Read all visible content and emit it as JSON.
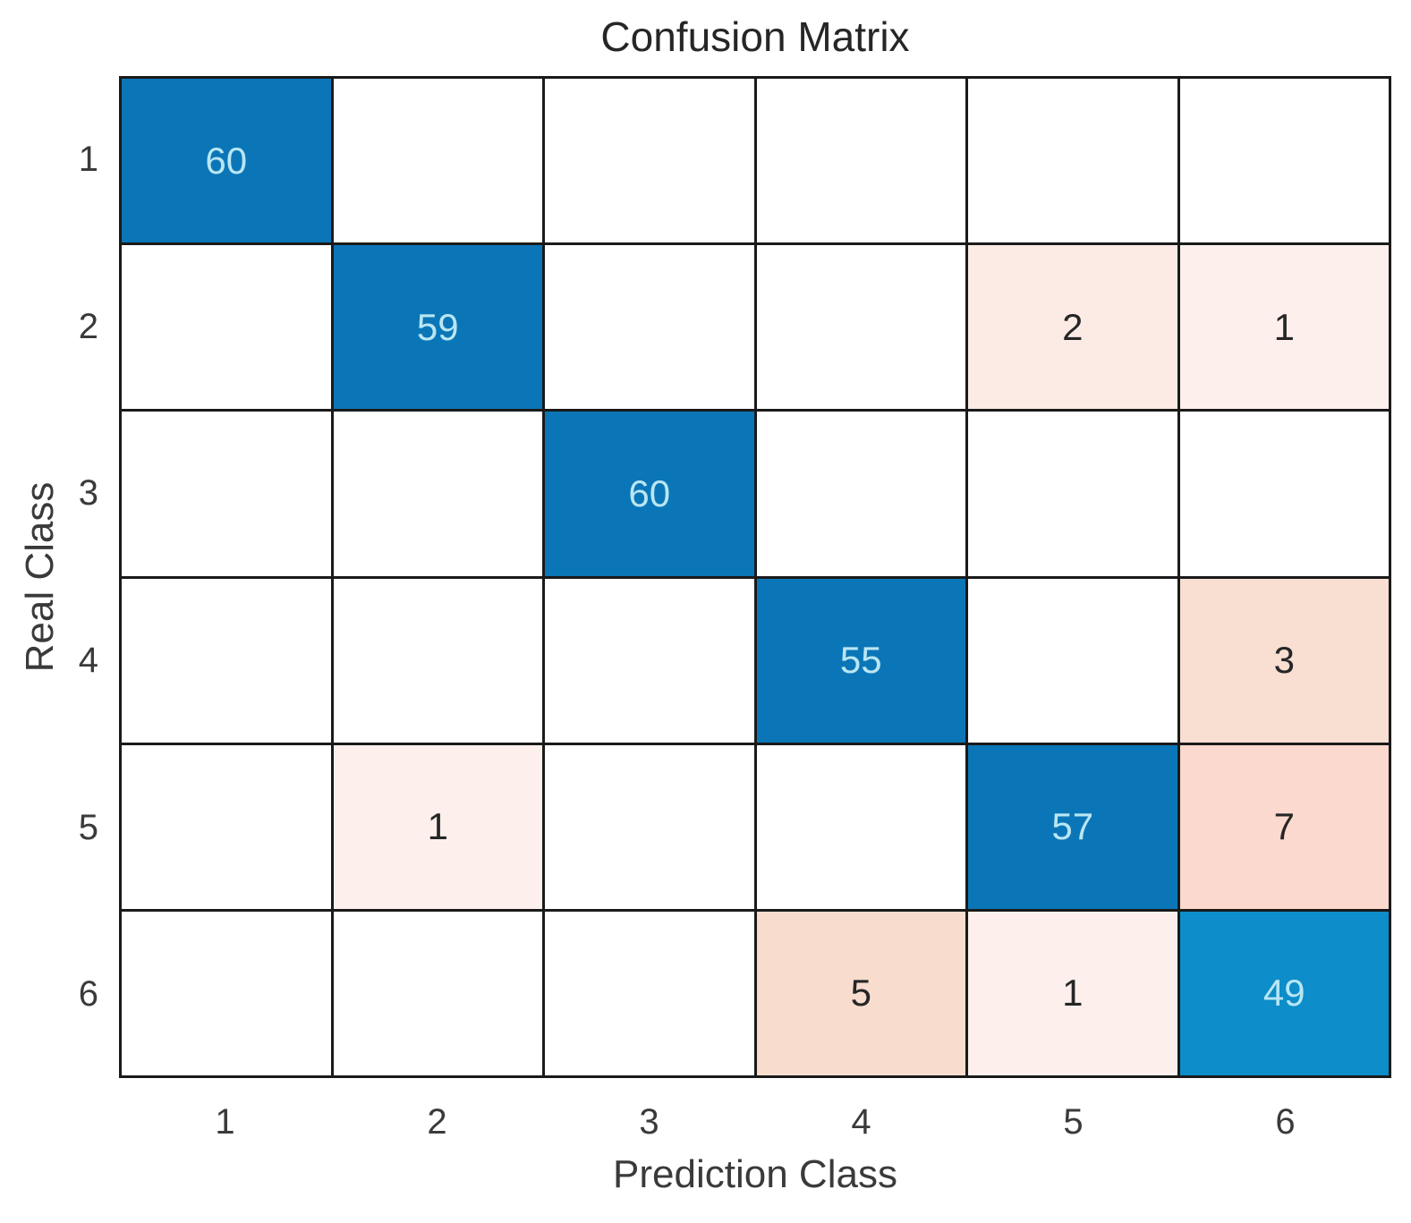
{
  "chart_data": {
    "type": "heatmap",
    "title": "Confusion Matrix",
    "xlabel": "Prediction Class",
    "ylabel": "Real Class",
    "x_categories": [
      "1",
      "2",
      "3",
      "4",
      "5",
      "6"
    ],
    "y_categories": [
      "1",
      "2",
      "3",
      "4",
      "5",
      "6"
    ],
    "matrix": [
      [
        60,
        0,
        0,
        0,
        0,
        0
      ],
      [
        0,
        59,
        0,
        0,
        2,
        1
      ],
      [
        0,
        0,
        60,
        0,
        0,
        0
      ],
      [
        0,
        0,
        0,
        55,
        0,
        3
      ],
      [
        0,
        1,
        0,
        0,
        57,
        7
      ],
      [
        0,
        0,
        0,
        5,
        1,
        49
      ]
    ],
    "zeros_shown_blank": true,
    "grid": true,
    "legend_position": "none"
  },
  "style": {
    "diagonal_fill_default": "#0b76b7",
    "diagonal_fill_by_value": {
      "49": "#0d8dc9"
    },
    "offdiagonal_fill_by_value": {
      "1": "#fdf0ec",
      "2": "#fcebe5",
      "3": "#f9ded2",
      "5": "#f8ddcf",
      "7": "#fbd9ce"
    },
    "zero_fill": "#ffffff",
    "diagonal_text_color": "#b9e6f3",
    "offdiagonal_text_color": "#262626",
    "grid_line_color": "#1a1a1a",
    "axis_text_color": "#3a3a3a",
    "background": "#ffffff"
  }
}
